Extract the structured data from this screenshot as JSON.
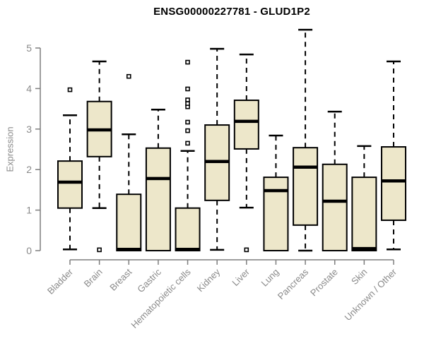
{
  "header": {
    "title": "ENSG00000227781 - GLUD1P2"
  },
  "chart_data": {
    "type": "boxplot",
    "title": "ENSG00000227781 - GLUD1P2",
    "xlabel": "",
    "ylabel": "Expression",
    "ylim": [
      0,
      5
    ],
    "yticks": [
      0,
      1,
      2,
      3,
      4,
      5
    ],
    "grid": false,
    "legend": "none",
    "colors": {
      "box_fill": "#EDE7CA",
      "box_stroke": "#000000",
      "median": "#000000",
      "whisker": "#000000",
      "axis_line": "#7d7d7d",
      "tick_label": "#8a8a8a",
      "title": "#000000"
    },
    "categories": [
      "Bladder",
      "Brain",
      "Breast",
      "Gastric",
      "Hematopoietic cells",
      "Kidney",
      "Liver",
      "Lung",
      "Pancreas",
      "Prostate",
      "Skin",
      "Unknown / Other"
    ],
    "series": [
      {
        "category": "Bladder",
        "whisker_low": 0.03,
        "q1": 1.05,
        "median": 1.69,
        "q3": 2.21,
        "whisker_high": 3.34,
        "outliers": [
          3.97
        ]
      },
      {
        "category": "Brain",
        "whisker_low": 1.05,
        "q1": 2.32,
        "median": 2.98,
        "q3": 3.68,
        "whisker_high": 4.67,
        "outliers": [
          0.02
        ]
      },
      {
        "category": "Breast",
        "whisker_low": 0.0,
        "q1": 0.0,
        "median": 0.03,
        "q3": 1.39,
        "whisker_high": 2.87,
        "outliers": [
          4.3
        ]
      },
      {
        "category": "Gastric",
        "whisker_low": 0.0,
        "q1": 0.0,
        "median": 1.78,
        "q3": 2.53,
        "whisker_high": 3.48,
        "outliers": []
      },
      {
        "category": "Hematopoietic cells",
        "whisker_low": 0.0,
        "q1": 0.0,
        "median": 0.03,
        "q3": 1.05,
        "whisker_high": 2.46,
        "outliers": [
          2.65,
          2.96,
          3.17,
          3.55,
          3.63,
          3.72,
          3.99,
          4.65
        ]
      },
      {
        "category": "Kidney",
        "whisker_low": 0.02,
        "q1": 1.24,
        "median": 2.2,
        "q3": 3.1,
        "whisker_high": 4.98,
        "outliers": []
      },
      {
        "category": "Liver",
        "whisker_low": 1.06,
        "q1": 2.51,
        "median": 3.19,
        "q3": 3.71,
        "whisker_high": 4.84,
        "outliers": [
          0.02
        ]
      },
      {
        "category": "Lung",
        "whisker_low": 0.0,
        "q1": 0.0,
        "median": 1.48,
        "q3": 1.81,
        "whisker_high": 2.84,
        "outliers": []
      },
      {
        "category": "Pancreas",
        "whisker_low": 0.0,
        "q1": 0.63,
        "median": 2.06,
        "q3": 2.54,
        "whisker_high": 5.45,
        "outliers": []
      },
      {
        "category": "Prostate",
        "whisker_low": 0.0,
        "q1": 0.0,
        "median": 1.22,
        "q3": 2.13,
        "whisker_high": 3.43,
        "outliers": []
      },
      {
        "category": "Skin",
        "whisker_low": 0.0,
        "q1": 0.0,
        "median": 0.05,
        "q3": 1.81,
        "whisker_high": 2.58,
        "outliers": []
      },
      {
        "category": "Unknown / Other",
        "whisker_low": 0.03,
        "q1": 0.75,
        "median": 1.72,
        "q3": 2.56,
        "whisker_high": 4.67,
        "outliers": []
      }
    ]
  }
}
